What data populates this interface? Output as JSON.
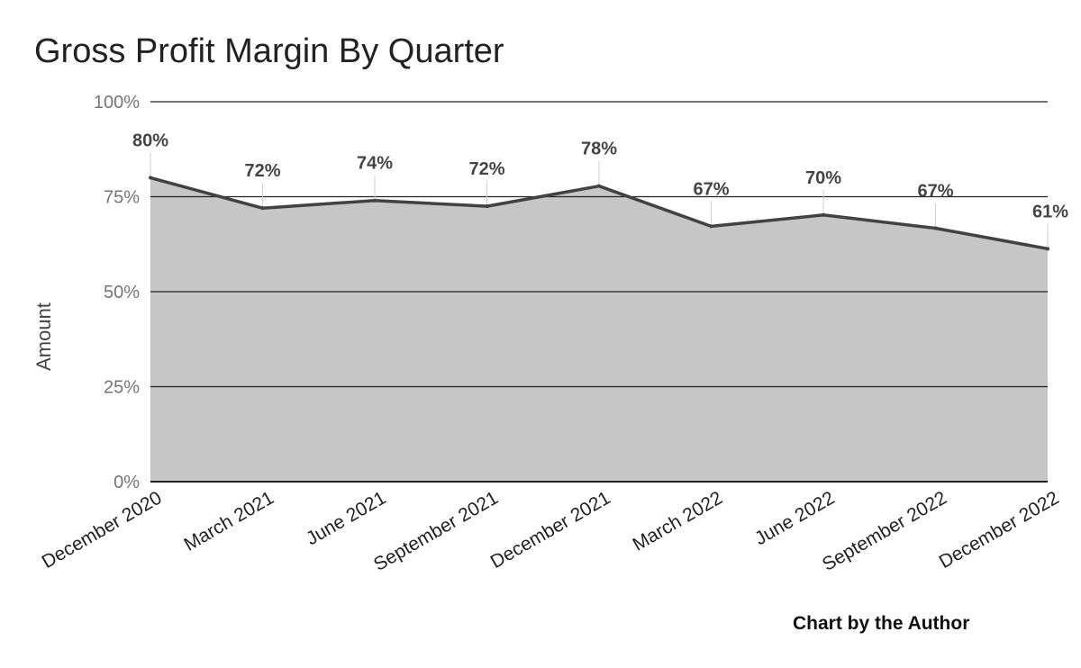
{
  "chart_data": {
    "type": "area",
    "title": "Gross Profit Margin By Quarter",
    "ylabel": "Amount",
    "xlabel": "",
    "credit": "Chart by the Author",
    "categories": [
      "December 2020",
      "March 2021",
      "June 2021",
      "September 2021",
      "December 2021",
      "March 2022",
      "June 2022",
      "September 2022",
      "December 2022"
    ],
    "series": [
      {
        "values": [
          80,
          72,
          74,
          72.5,
          77.8,
          67.2,
          70.2,
          66.7,
          61.3
        ],
        "labels": [
          "80%",
          "72%",
          "74%",
          "72%",
          "78%",
          "67%",
          "70%",
          "67%",
          "61%"
        ]
      }
    ],
    "ylim": [
      0,
      100
    ],
    "yticks": [
      0,
      25,
      50,
      75,
      100
    ],
    "ytick_labels": [
      "0%",
      "25%",
      "50%",
      "75%",
      "100%"
    ],
    "grid": true,
    "legend": "none",
    "colors": {
      "area_fill": "#c6c6c6",
      "line": "#424242",
      "gridline": "#222222",
      "leader": "#cfcfcf"
    }
  }
}
